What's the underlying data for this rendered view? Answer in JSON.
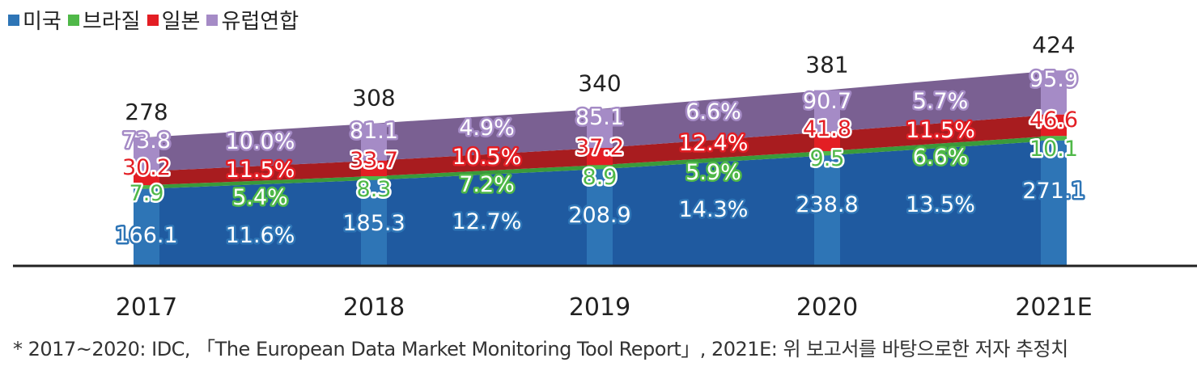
{
  "chart_data": {
    "type": "area",
    "categories": [
      "2017",
      "2018",
      "2019",
      "2020",
      "2021E"
    ],
    "series": [
      {
        "name": "미국",
        "values": [
          166.1,
          185.3,
          208.9,
          238.8,
          271.1
        ],
        "color": "#2e75b6"
      },
      {
        "name": "브라질",
        "values": [
          7.9,
          8.3,
          8.9,
          9.5,
          10.1
        ],
        "color": "#4fb848"
      },
      {
        "name": "일본",
        "values": [
          30.2,
          33.7,
          37.2,
          41.8,
          46.6
        ],
        "color": "#e31e24"
      },
      {
        "name": "유럽연합",
        "values": [
          73.8,
          81.1,
          85.1,
          90.7,
          95.9
        ],
        "color": "#a58bc6"
      }
    ],
    "totals": [
      278,
      308,
      340,
      381,
      424
    ],
    "growth_rates": {
      "미국": [
        "11.6%",
        "12.7%",
        "14.3%",
        "13.5%"
      ],
      "브라질": [
        "5.4%",
        "7.2%",
        "5.9%",
        "6.6%"
      ],
      "일본": [
        "11.5%",
        "10.5%",
        "12.4%",
        "11.5%"
      ],
      "유럽연합": [
        "10.0%",
        "4.9%",
        "6.6%",
        "5.7%"
      ]
    },
    "ylim": [
      0,
      424
    ],
    "grid": false,
    "legend_position": "top-left"
  },
  "legend": [
    {
      "label": "미국",
      "color": "#2e75b6"
    },
    {
      "label": "브라질",
      "color": "#4fb848"
    },
    {
      "label": "일본",
      "color": "#e31e24"
    },
    {
      "label": "유럽연합",
      "color": "#a58bc6"
    }
  ],
  "footnote": "* 2017~2020: IDC, 「The European Data Market Monitoring Tool Report」, 2021E: 위 보고서를 바탕으로한 저자 추정치"
}
